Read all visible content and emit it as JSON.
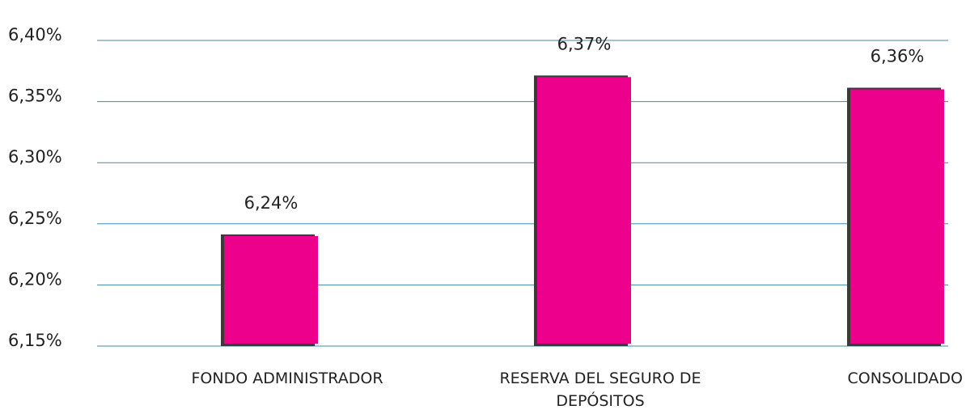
{
  "chart_data": {
    "type": "bar",
    "categories": [
      "FONDO ADMINISTRADOR",
      "RESERVA DEL SEGURO DE DEPÓSITOS",
      "CONSOLIDADO"
    ],
    "values": [
      6.24,
      6.37,
      6.36
    ],
    "value_labels": [
      "6,24%",
      "6,37%",
      "6,36%"
    ],
    "color": "#ec008c",
    "ylim": [
      6.15,
      6.4
    ],
    "yticks": [
      {
        "value": 6.15,
        "label": "6,15%"
      },
      {
        "value": 6.2,
        "label": "6,20%"
      },
      {
        "value": 6.25,
        "label": "6,25%"
      },
      {
        "value": 6.3,
        "label": "6,30%"
      },
      {
        "value": 6.35,
        "label": "6,35%"
      },
      {
        "value": 6.4,
        "label": "6,40%"
      }
    ],
    "grid": true
  }
}
